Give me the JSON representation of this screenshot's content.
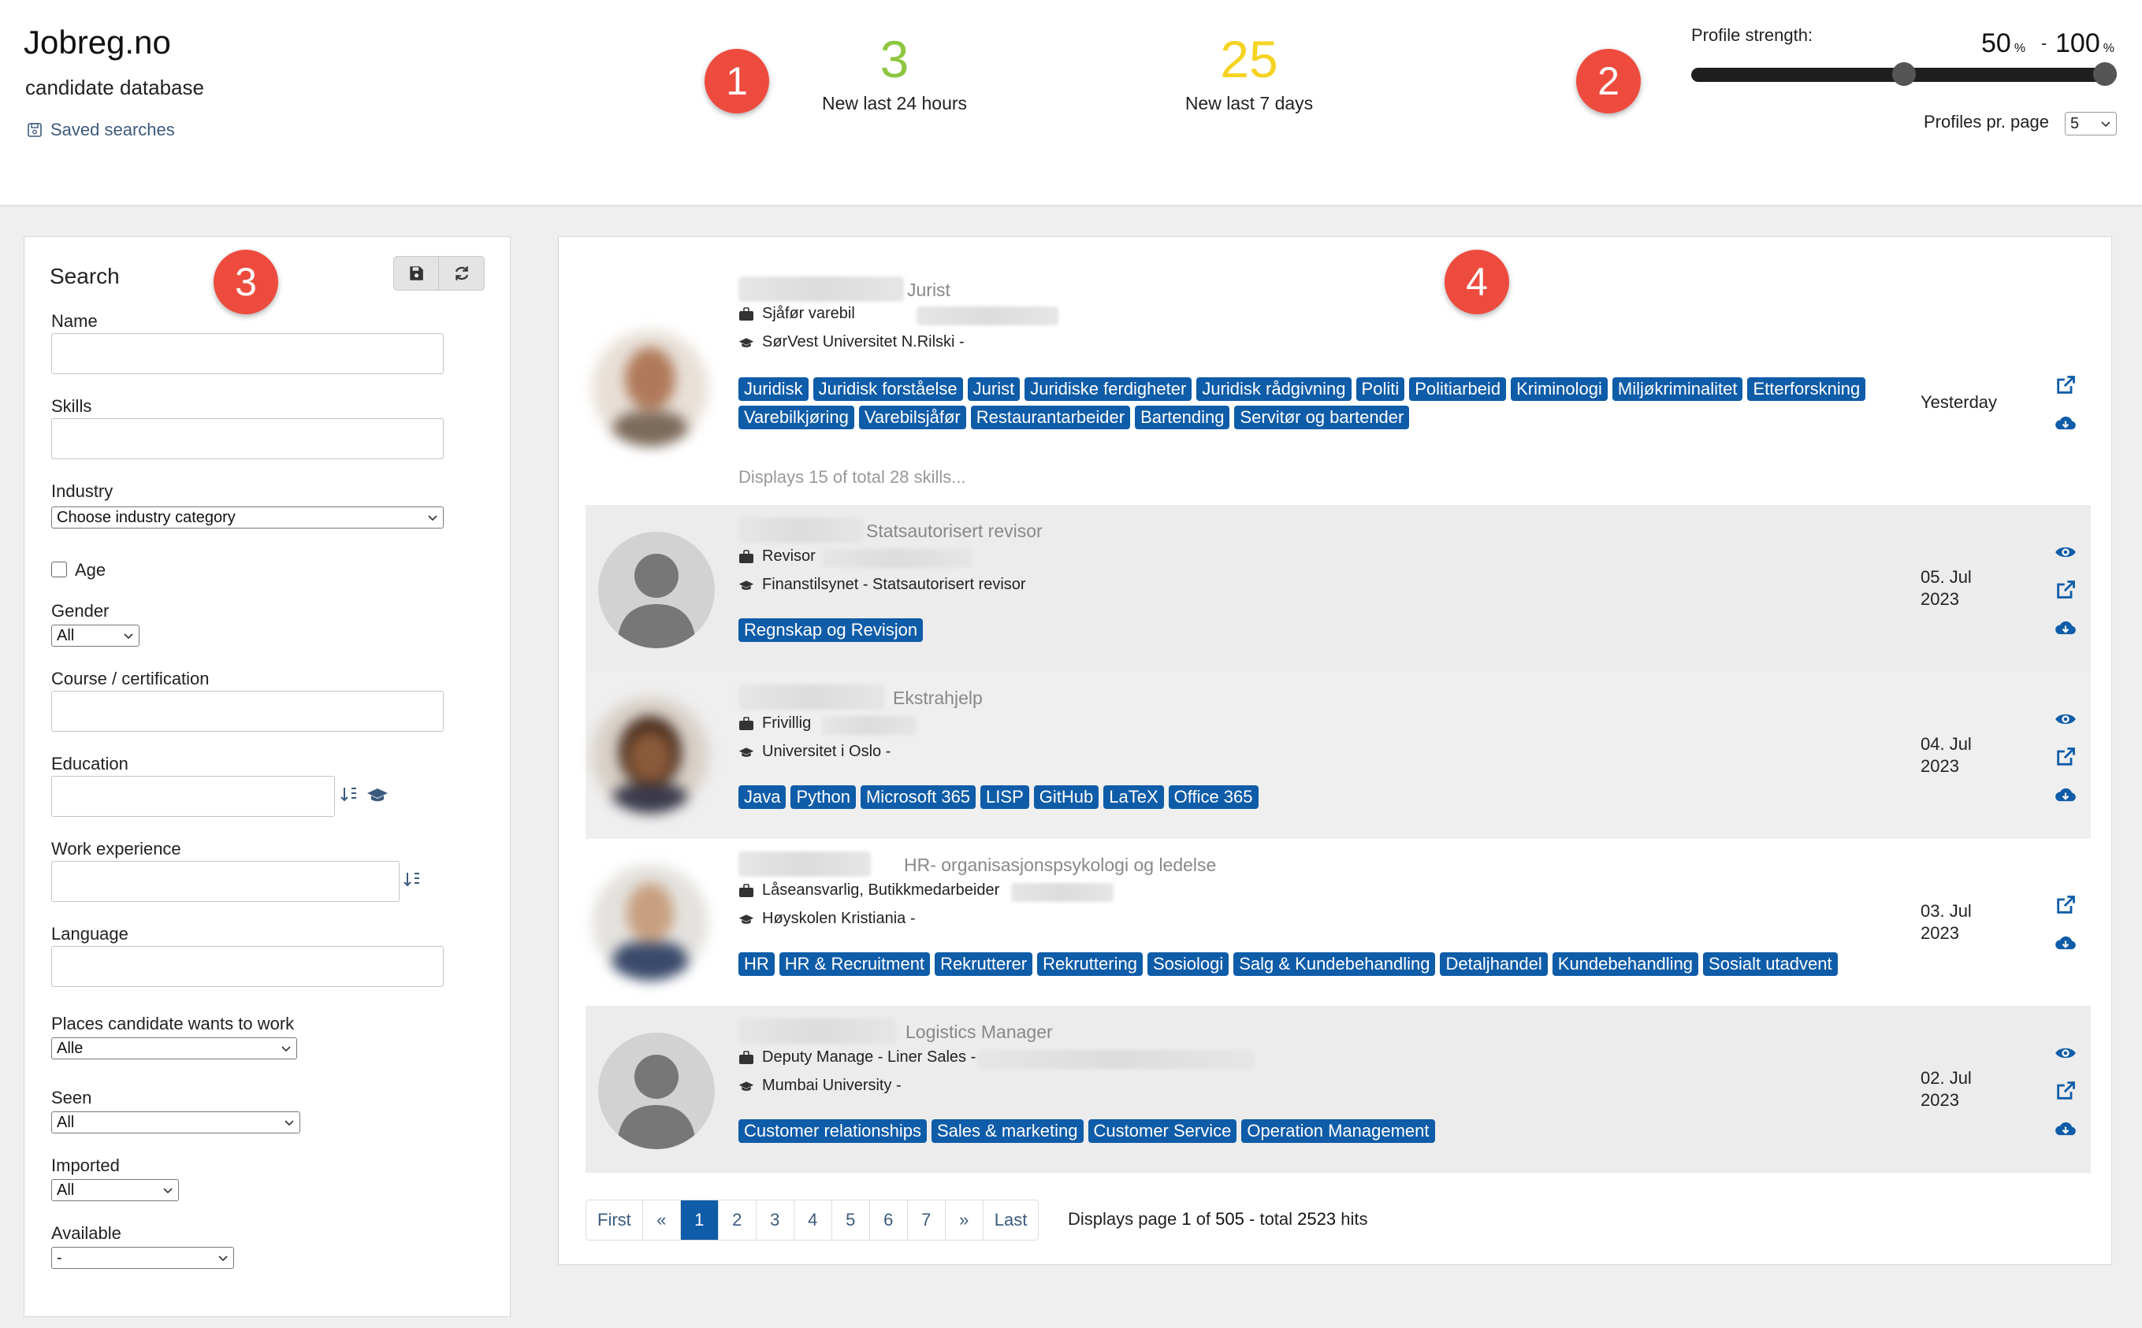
{
  "header": {
    "logo": "Jobreg.no",
    "subtitle": "candidate database",
    "saved_searches": "Saved searches",
    "markers": [
      "1",
      "2",
      "3",
      "4"
    ],
    "stats": [
      {
        "value": "3",
        "label": "New last 24 hours",
        "color": "#8dc63f"
      },
      {
        "value": "25",
        "label": "New last 7 days",
        "color": "#f5d321"
      }
    ],
    "profile_strength": {
      "label": "Profile strength:",
      "min": "50",
      "max": "100",
      "unit": "%",
      "dash": "-",
      "range_fraction": [
        0.5,
        1.0
      ]
    },
    "profiles_per_page": {
      "label": "Profiles pr. page",
      "value": "5"
    }
  },
  "search": {
    "title": "Search",
    "fields": {
      "name": "Name",
      "skills": "Skills",
      "industry": "Industry",
      "industry_value": "Choose industry category",
      "age": "Age",
      "gender": "Gender",
      "gender_value": "All",
      "course": "Course / certification",
      "education": "Education",
      "work_experience": "Work experience",
      "language": "Language",
      "places": "Places candidate wants to work",
      "places_value": "Alle",
      "seen": "Seen",
      "seen_value": "All",
      "imported": "Imported",
      "imported_value": "All",
      "available": "Available",
      "available_value": "-"
    }
  },
  "candidates": [
    {
      "headline": "Jurist",
      "job": "Sjåfør varebil",
      "education": "SørVest Universitet N.Rilski -",
      "tags": [
        "Juridisk",
        "Juridisk forståelse",
        "Jurist",
        "Juridiske ferdigheter",
        "Juridisk rådgivning",
        "Politi",
        "Politiarbeid",
        "Kriminologi",
        "Miljøkriminalitet",
        "Etterforskning",
        "Varebilkjøring",
        "Varebilsjåfør",
        "Restaurantarbeider",
        "Bartending",
        "Servitør og bartender"
      ],
      "more": "Displays 15 of total 28 skills...",
      "date": "Yesterday"
    },
    {
      "headline": "Statsautorisert revisor",
      "job": "Revisor",
      "education": "Finanstilsynet - Statsautorisert revisor",
      "tags": [
        "Regnskap og Revisjon"
      ],
      "date_line1": "05. Jul",
      "date_line2": "2023"
    },
    {
      "headline": "Ekstrahjelp",
      "job": "Frivillig",
      "education": "Universitet i Oslo -",
      "tags": [
        "Java",
        "Python",
        "Microsoft 365",
        "LISP",
        "GitHub",
        "LaTeX",
        "Office 365"
      ],
      "date_line1": "04. Jul",
      "date_line2": "2023"
    },
    {
      "headline": "HR- organisasjonspsykologi og ledelse",
      "job": "Låseansvarlig, Butikkmedarbeider",
      "education": "Høyskolen Kristiania -",
      "tags": [
        "HR",
        "HR & Recruitment",
        "Rekrutterer",
        "Rekruttering",
        "Sosiologi",
        "Salg & Kundebehandling",
        "Detaljhandel",
        "Kundebehandling",
        "Sosialt utadvent"
      ],
      "date_line1": "03. Jul",
      "date_line2": "2023"
    },
    {
      "headline": "Logistics Manager",
      "job": "Deputy Manage - Liner Sales -",
      "education": "Mumbai University -",
      "tags": [
        "Customer relationships",
        "Sales & marketing",
        "Customer Service",
        "Operation Management"
      ],
      "date_line1": "02. Jul",
      "date_line2": "2023"
    }
  ],
  "pagination": {
    "first": "First",
    "prev": "«",
    "pages": [
      "1",
      "2",
      "3",
      "4",
      "5",
      "6",
      "7"
    ],
    "next": "»",
    "last": "Last",
    "info_prefix": "Displays page",
    "current": "1",
    "info_of": "of",
    "total_pages": "505",
    "info_total": "- total",
    "hits": "2523",
    "info_suffix": "hits"
  },
  "colors": {
    "tag": "#0f5ca8",
    "marker": "#ee4b3f",
    "link": "#3c5a7c"
  }
}
